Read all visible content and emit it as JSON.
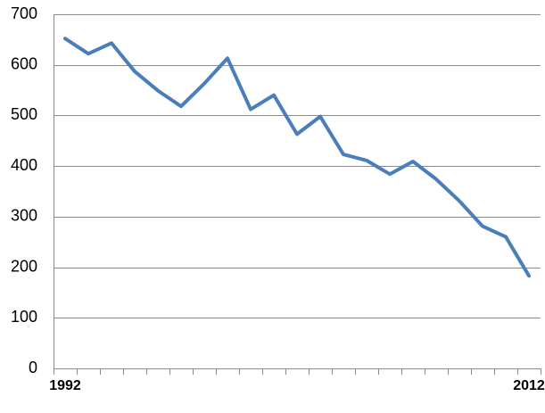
{
  "chart_data": {
    "type": "line",
    "title": "",
    "xlabel": "",
    "ylabel": "",
    "ylim": [
      0,
      700
    ],
    "yticks": [
      "0",
      "100",
      "200",
      "300",
      "400",
      "500",
      "600",
      "700"
    ],
    "x": [
      1992,
      1993,
      1994,
      1995,
      1996,
      1997,
      1998,
      1999,
      2000,
      2001,
      2002,
      2003,
      2004,
      2005,
      2006,
      2007,
      2008,
      2009,
      2010,
      2011,
      2012
    ],
    "x_tick_labels": [
      {
        "index": 0,
        "label": "1992"
      },
      {
        "index": 20,
        "label": "2012"
      }
    ],
    "grid": true,
    "legend": "none",
    "series": [
      {
        "color": "#4a7ebb",
        "values": [
          652,
          622,
          643,
          587,
          549,
          518,
          563,
          613,
          512,
          540,
          463,
          498,
          423,
          411,
          384,
          409,
          374,
          331,
          281,
          260,
          183
        ]
      }
    ]
  }
}
